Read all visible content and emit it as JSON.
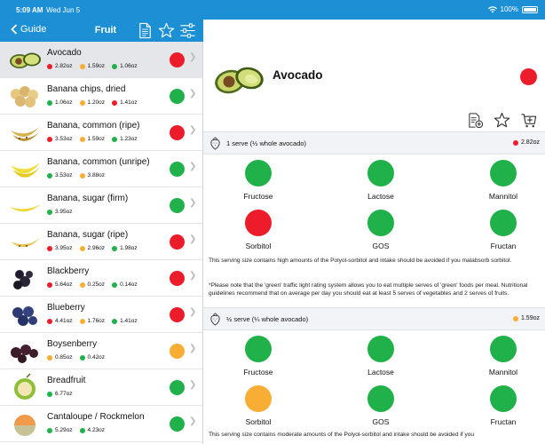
{
  "status_bar": {
    "time": "5:09 AM",
    "date": "Wed Jun 5",
    "battery": "100%"
  },
  "nav": {
    "back_label": "Guide",
    "title": "Fruit"
  },
  "colors": {
    "green": "#21b14b",
    "red": "#ec1c2a",
    "yellow": "#f8ad34",
    "accent": "#1d8fd4"
  },
  "foods": [
    {
      "name": "Avocado",
      "rating": "red",
      "serves": [
        {
          "color": "red",
          "amount": "2.82oz"
        },
        {
          "color": "yellow",
          "amount": "1.59oz"
        },
        {
          "color": "green",
          "amount": "1.06oz"
        }
      ],
      "icon": "avocado-icon"
    },
    {
      "name": "Banana chips, dried",
      "rating": "green",
      "serves": [
        {
          "color": "green",
          "amount": "1.06oz"
        },
        {
          "color": "yellow",
          "amount": "1.20oz"
        },
        {
          "color": "red",
          "amount": "1.41oz"
        }
      ],
      "icon": "banana-chips-icon"
    },
    {
      "name": "Banana, common (ripe)",
      "rating": "red",
      "serves": [
        {
          "color": "red",
          "amount": "3.53oz"
        },
        {
          "color": "yellow",
          "amount": "1.59oz"
        },
        {
          "color": "green",
          "amount": "1.23oz"
        }
      ],
      "icon": "banana-ripe-icon"
    },
    {
      "name": "Banana, common (unripe)",
      "rating": "green",
      "serves": [
        {
          "color": "green",
          "amount": "3.53oz"
        },
        {
          "color": "yellow",
          "amount": "3.88oz"
        }
      ],
      "icon": "banana-unripe-icon"
    },
    {
      "name": "Banana, sugar (firm)",
      "rating": "green",
      "serves": [
        {
          "color": "green",
          "amount": "3.95oz"
        }
      ],
      "icon": "banana-firm-icon"
    },
    {
      "name": "Banana, sugar (ripe)",
      "rating": "red",
      "serves": [
        {
          "color": "red",
          "amount": "3.95oz"
        },
        {
          "color": "yellow",
          "amount": "2.96oz"
        },
        {
          "color": "green",
          "amount": "1.98oz"
        }
      ],
      "icon": "banana-sugar-ripe-icon"
    },
    {
      "name": "Blackberry",
      "rating": "red",
      "serves": [
        {
          "color": "red",
          "amount": "5.64oz"
        },
        {
          "color": "yellow",
          "amount": "0.25oz"
        },
        {
          "color": "green",
          "amount": "0.14oz"
        }
      ],
      "icon": "blackberry-icon"
    },
    {
      "name": "Blueberry",
      "rating": "red",
      "serves": [
        {
          "color": "red",
          "amount": "4.41oz"
        },
        {
          "color": "yellow",
          "amount": "1.76oz"
        },
        {
          "color": "green",
          "amount": "1.41oz"
        }
      ],
      "icon": "blueberry-icon"
    },
    {
      "name": "Boysenberry",
      "rating": "yellow",
      "serves": [
        {
          "color": "yellow",
          "amount": "0.85oz"
        },
        {
          "color": "green",
          "amount": "0.42oz"
        }
      ],
      "icon": "boysenberry-icon"
    },
    {
      "name": "Breadfruit",
      "rating": "green",
      "serves": [
        {
          "color": "green",
          "amount": "6.77oz"
        }
      ],
      "icon": "breadfruit-icon"
    },
    {
      "name": "Cantaloupe / Rockmelon",
      "rating": "green",
      "serves": [
        {
          "color": "green",
          "amount": "5.29oz"
        },
        {
          "color": "green",
          "amount": "4.23oz"
        }
      ],
      "icon": "cantaloupe-icon"
    }
  ],
  "detail": {
    "title": "Avocado",
    "rating": "red",
    "servings": [
      {
        "label": "1 serve (½ whole avocado)",
        "weight": "2.82oz",
        "weight_color": "red",
        "items": [
          {
            "name": "Fructose",
            "color": "green"
          },
          {
            "name": "Lactose",
            "color": "green"
          },
          {
            "name": "Mannitol",
            "color": "green"
          },
          {
            "name": "Sorbitol",
            "color": "red"
          },
          {
            "name": "GOS",
            "color": "green"
          },
          {
            "name": "Fructan",
            "color": "green"
          }
        ],
        "note": "This serving size contains high amounts of the Polyol-sorbitol and intake should be avoided if you malabsorb sorbitol.",
        "note2": "*Please note that the 'green' traffic light rating system allows you to eat multiple serves of 'green' foods per meal. Nutritional guidelines recommend that on average per day you should eat at least 5 serves of vegetables and 2 serves of fruits."
      },
      {
        "label": "½ serve (¼ whole avocado)",
        "weight": "1.59oz",
        "weight_color": "yellow",
        "items": [
          {
            "name": "Fructose",
            "color": "green"
          },
          {
            "name": "Lactose",
            "color": "green"
          },
          {
            "name": "Mannitol",
            "color": "green"
          },
          {
            "name": "Sorbitol",
            "color": "yellow"
          },
          {
            "name": "GOS",
            "color": "green"
          },
          {
            "name": "Fructan",
            "color": "green"
          }
        ],
        "note": "This serving size contains moderate amounts of the Polyol-sorbitol and intake should be avoided if you"
      }
    ]
  }
}
